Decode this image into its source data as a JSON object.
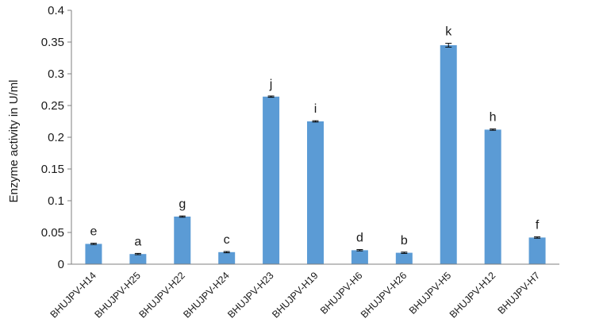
{
  "chart_data": {
    "type": "bar",
    "title": "",
    "xlabel": "",
    "ylabel": "Enzyme activity in U/ml",
    "ylim": [
      0,
      0.4
    ],
    "yticks": [
      "0",
      "0.05",
      "0.1",
      "0.15",
      "0.2",
      "0.25",
      "0.3",
      "0.35",
      "0.4"
    ],
    "categories": [
      "BHUJPV-H14",
      "BHUJPV-H25",
      "BHUJPV-H22",
      "BHUJPV-H24",
      "BHUJPV-H23",
      "BHUJPV-H19",
      "BHUJPV-H6",
      "BHUJPV-H26",
      "BHUJPV-H5",
      "BHUJPV-H12",
      "BHUJPV-H7"
    ],
    "values": [
      0.032,
      0.016,
      0.075,
      0.019,
      0.264,
      0.225,
      0.022,
      0.018,
      0.345,
      0.212,
      0.042
    ],
    "errors": [
      0.001,
      0.001,
      0.001,
      0.001,
      0.001,
      0.001,
      0.001,
      0.001,
      0.003,
      0.001,
      0.001
    ],
    "letters": [
      "e",
      "a",
      "g",
      "c",
      "j",
      "i",
      "d",
      "b",
      "k",
      "h",
      "f"
    ],
    "grid": false,
    "bar_color": "#5B9BD5",
    "axis_color": "#7f7f7f"
  }
}
